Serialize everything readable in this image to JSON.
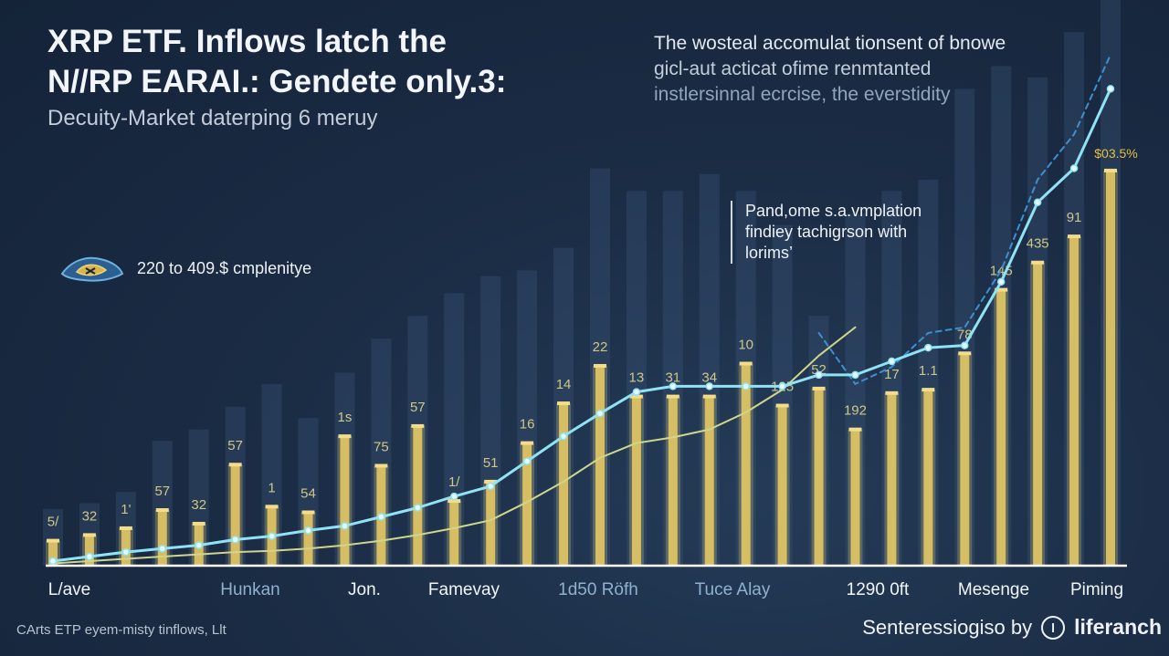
{
  "header": {
    "title_line1": "XRP ETF. Inflows latch the",
    "title_line2": "N//RP EARAI.: Gendete only.3:",
    "subtitle": "Decuity-Market daterping  6  meruy"
  },
  "blurb": {
    "line1": "The wosteal accomulat tionsent of bnowe",
    "line2": "gicl-aut acticat ofime renmtanted",
    "line3": "instlersinnal ecrcise, the everstidity"
  },
  "callout": {
    "line1": "Pand,ome s.a.vmplation",
    "line2": "findiey tachigr­son with",
    "line3": "lorims’"
  },
  "legend": {
    "label": "220 to 409.$ cmplenitye",
    "icon": "xrp-logo-icon"
  },
  "footer": {
    "source": "CArts ETP eyem-misty tinflows, Llt",
    "credit": "Senteressiogiso by",
    "brand": "liferanch"
  },
  "colors": {
    "background": "#1b2c45",
    "bar_gold": "#e3c865",
    "bar_ghost": "#3a5575",
    "line_cyan": "#8fe3f5",
    "line_olive": "#cfd68a",
    "line_dashed": "#3f8fd0",
    "axis": "#ffffff"
  },
  "chart_data": {
    "type": "bar",
    "x_ticks": [
      "L/ave",
      "Hunkan",
      "Jon.",
      "Famevay",
      "1d50 Röfh",
      "Tuce Alay",
      "1290 0ft",
      "Mesenge",
      "Piming"
    ],
    "data_labels": [
      "5/",
      "32",
      "1'",
      "57",
      "32",
      "57",
      "1",
      "54",
      "1s",
      "75",
      "57",
      "1/",
      "51",
      "16",
      "14",
      "22",
      "13",
      "31",
      "34",
      "10",
      "125",
      "52",
      "192",
      "17",
      "1.1",
      "78",
      "145",
      "435",
      "91",
      "$03.5%"
    ],
    "bar_values": [
      22,
      27,
      33,
      49,
      37,
      89,
      52,
      47,
      114,
      88,
      123,
      57,
      74,
      108,
      143,
      176,
      149,
      149,
      149,
      178,
      141,
      156,
      120,
      152,
      155,
      187,
      243,
      267,
      290,
      348
    ],
    "ghost_values": [
      50,
      55,
      65,
      110,
      120,
      140,
      160,
      130,
      170,
      200,
      220,
      240,
      255,
      260,
      280,
      350,
      330,
      330,
      345,
      330,
      300,
      220,
      310,
      330,
      340,
      420,
      440,
      430,
      470,
      550
    ],
    "series": [
      {
        "values": [
          4,
          8,
          12,
          15,
          18,
          23,
          26,
          31,
          35,
          43,
          51,
          61,
          70,
          92,
          114,
          134,
          153,
          158,
          158,
          158,
          158,
          168,
          168,
          180,
          192,
          194,
          250,
          320,
          350,
          420
        ]
      },
      {
        "values": [
          2,
          4,
          6,
          8,
          10,
          12,
          13,
          15,
          18,
          22,
          27,
          33,
          40,
          56,
          74,
          95,
          108,
          113,
          120,
          135,
          155,
          185,
          210,
          0,
          0,
          0,
          0,
          0,
          0,
          0
        ]
      },
      {
        "values": [
          0,
          0,
          0,
          0,
          0,
          0,
          0,
          0,
          0,
          0,
          0,
          0,
          0,
          0,
          0,
          0,
          0,
          0,
          0,
          0,
          0,
          205,
          160,
          175,
          205,
          210,
          260,
          340,
          380,
          450
        ]
      }
    ],
    "ylim": [
      0,
      450
    ]
  }
}
